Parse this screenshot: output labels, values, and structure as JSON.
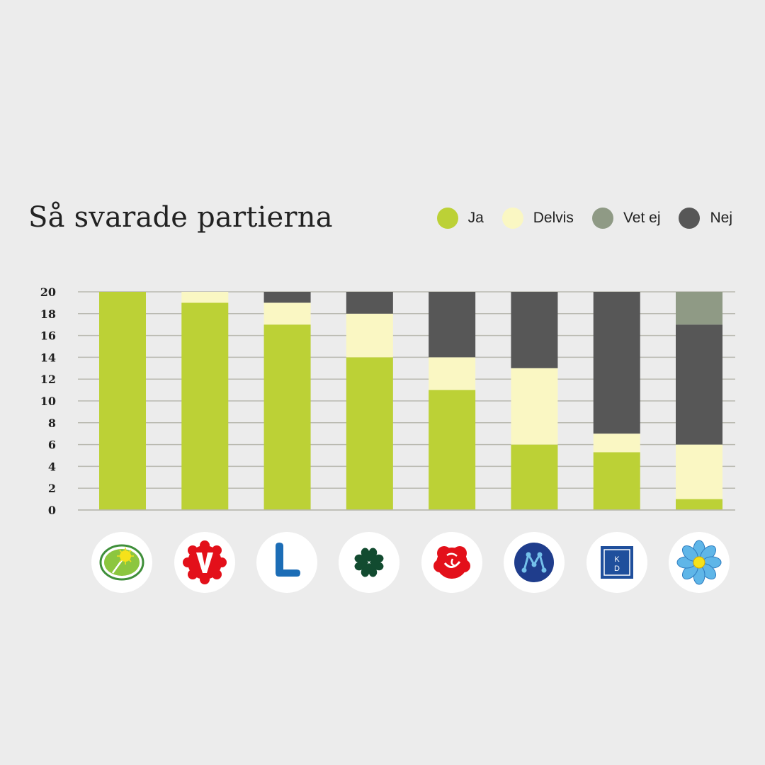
{
  "title": "Så svarade partierna",
  "legend": [
    {
      "label": "Ja",
      "color": "#bcd136"
    },
    {
      "label": "Delvis",
      "color": "#faf7c3"
    },
    {
      "label": "Vet ej",
      "color": "#8f9a85"
    },
    {
      "label": "Nej",
      "color": "#575757"
    }
  ],
  "chart_data": {
    "type": "bar",
    "stacked": true,
    "title": "Så svarade partierna",
    "categories": [
      "MP",
      "V",
      "L",
      "C",
      "S",
      "M",
      "KD",
      "SD"
    ],
    "series": [
      {
        "name": "Ja",
        "color": "#bcd136",
        "values": [
          20,
          19,
          17,
          14,
          11,
          6,
          5.3,
          1
        ]
      },
      {
        "name": "Delvis",
        "color": "#faf7c3",
        "values": [
          0,
          1,
          2,
          4,
          3,
          7,
          1.7,
          5
        ]
      },
      {
        "name": "Nej",
        "color": "#575757",
        "values": [
          0,
          0,
          1,
          2,
          6,
          7,
          13,
          11
        ]
      },
      {
        "name": "Vet ej",
        "color": "#8f9a85",
        "values": [
          0,
          0,
          0,
          0,
          0,
          0,
          0,
          3
        ]
      }
    ],
    "ylim": [
      0,
      20
    ],
    "yticks": [
      0,
      2,
      4,
      6,
      8,
      10,
      12,
      14,
      16,
      18,
      20
    ],
    "grid": true,
    "legend_position": "top-right"
  },
  "logos": [
    {
      "icon": "miljopartiet-logo-icon"
    },
    {
      "icon": "vansterpartiet-logo-icon"
    },
    {
      "icon": "liberalerna-logo-icon"
    },
    {
      "icon": "centerpartiet-logo-icon"
    },
    {
      "icon": "socialdemokraterna-logo-icon"
    },
    {
      "icon": "moderaterna-logo-icon"
    },
    {
      "icon": "kristdemokraterna-logo-icon"
    },
    {
      "icon": "sverigedemokraterna-logo-icon"
    }
  ],
  "kd_logo_text": "KD"
}
